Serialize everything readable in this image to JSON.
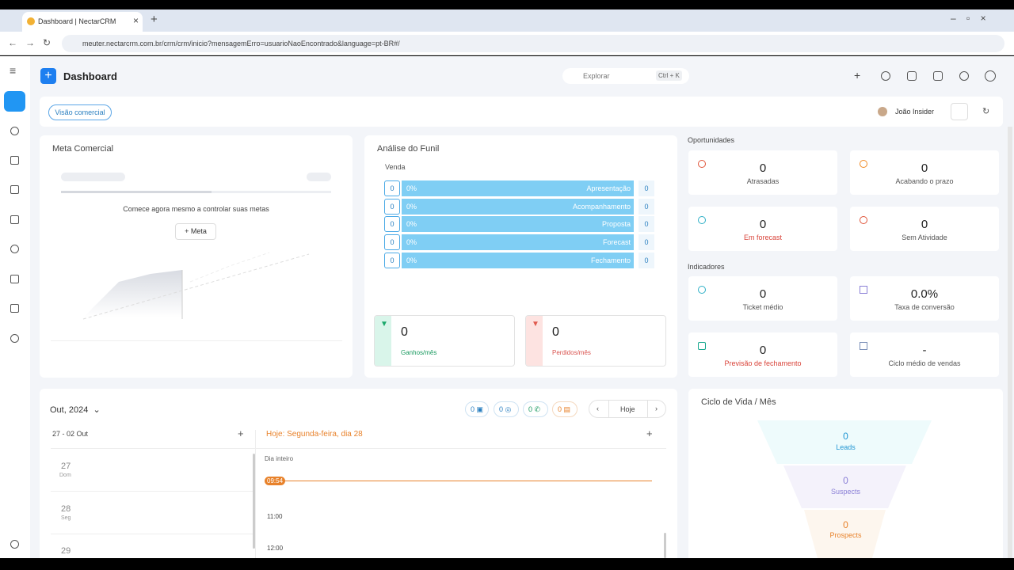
{
  "browser": {
    "tab_title": "Dashboard | NectarCRM",
    "url": "meuter.nectarcrm.com.br/crm/crm/inicio?mensagemErro=usuarioNaoEncontrado&language=pt-BR#/"
  },
  "header": {
    "title": "Dashboard",
    "search": "Explorar",
    "shortcut": "Ctrl + K"
  },
  "toolbar": {
    "view": "Visão comercial",
    "user": "João Insider"
  },
  "meta": {
    "title": "Meta Comercial",
    "message": "Comece agora mesmo a controlar suas metas",
    "button": "Meta"
  },
  "funil": {
    "title": "Análise do Funil",
    "pipeline": "Venda",
    "stages": [
      {
        "count": "0",
        "percent": "0%",
        "name": "Apresentação",
        "value": "0"
      },
      {
        "count": "0",
        "percent": "0%",
        "name": "Acompanhamento",
        "value": "0"
      },
      {
        "count": "0",
        "percent": "0%",
        "name": "Proposta",
        "value": "0"
      },
      {
        "count": "0",
        "percent": "0%",
        "name": "Forecast",
        "value": "0"
      },
      {
        "count": "0",
        "percent": "0%",
        "name": "Fechamento",
        "value": "0"
      }
    ],
    "won": {
      "value": "0",
      "label": "Ganhos/mês"
    },
    "lost": {
      "value": "0",
      "label": "Perdidos/mês"
    }
  },
  "oportunidades": {
    "title": "Oportunidades",
    "items": [
      {
        "value": "0",
        "label": "Atrasadas"
      },
      {
        "value": "0",
        "label": "Acabando o prazo"
      },
      {
        "value": "0",
        "label": "Em forecast"
      },
      {
        "value": "0",
        "label": "Sem Atividade"
      }
    ]
  },
  "indicadores": {
    "title": "Indicadores",
    "items": [
      {
        "value": "0",
        "label": "Ticket médio"
      },
      {
        "value": "0.0%",
        "label": "Taxa de conversão"
      },
      {
        "value": "0",
        "label": "Previsão de fechamento"
      },
      {
        "value": "-",
        "label": "Ciclo médio de vendas"
      }
    ]
  },
  "calendar": {
    "month": "Out, 2024",
    "badges": [
      "0",
      "0",
      "0",
      "0"
    ],
    "today_button": "Hoje",
    "week": "27 - 02 Out",
    "today": "Hoje: Segunda-feira, dia 28",
    "days": [
      {
        "day": "27",
        "weekday": "Dom"
      },
      {
        "day": "28",
        "weekday": "Seg"
      },
      {
        "day": "29"
      }
    ],
    "all_day": "Dia inteiro",
    "now": "09:54",
    "times": [
      "11:00",
      "12:00"
    ]
  },
  "ciclo": {
    "title": "Ciclo de Vida / Mês",
    "levels": [
      {
        "value": "0",
        "label": "Leads"
      },
      {
        "value": "0",
        "label": "Suspects"
      },
      {
        "value": "0",
        "label": "Prospects"
      }
    ]
  }
}
